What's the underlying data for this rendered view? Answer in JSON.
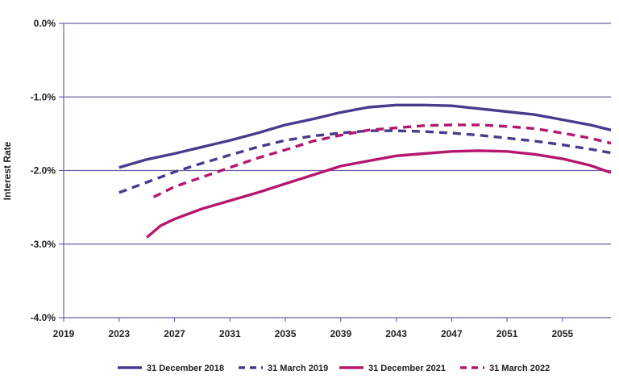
{
  "chart_data": {
    "type": "line",
    "title": "",
    "xlabel": "",
    "ylabel": "Interest Rate",
    "x_ticks": [
      "2019",
      "2023",
      "2027",
      "2031",
      "2035",
      "2039",
      "2043",
      "2047",
      "2051",
      "2055"
    ],
    "y_ticks": [
      "0.0%",
      "-1.0%",
      "-2.0%",
      "-3.0%",
      "-4.0%"
    ],
    "xlim": [
      2019,
      2058.5
    ],
    "ylim": [
      -4.0,
      0.0
    ],
    "grid": true,
    "legend_position": "bottom",
    "series": [
      {
        "name": "31 December 2018",
        "color": "#4b3a8c",
        "style": "solid",
        "x": [
          2023,
          2025,
          2027,
          2029,
          2031,
          2033,
          2035,
          2037,
          2039,
          2041,
          2043,
          2045,
          2047,
          2049,
          2051,
          2053,
          2055,
          2057,
          2058.5
        ],
        "y": [
          -1.96,
          -1.85,
          -1.77,
          -1.68,
          -1.59,
          -1.49,
          -1.38,
          -1.3,
          -1.21,
          -1.14,
          -1.11,
          -1.11,
          -1.12,
          -1.16,
          -1.2,
          -1.24,
          -1.31,
          -1.38,
          -1.45
        ]
      },
      {
        "name": "31 March 2019",
        "color": "#4b3a8c",
        "style": "dashed",
        "x": [
          2023,
          2025,
          2027,
          2029,
          2031,
          2033,
          2035,
          2037,
          2039,
          2041,
          2043,
          2045,
          2047,
          2049,
          2051,
          2053,
          2055,
          2057,
          2058.5
        ],
        "y": [
          -2.3,
          -2.16,
          -2.02,
          -1.9,
          -1.79,
          -1.68,
          -1.59,
          -1.53,
          -1.49,
          -1.46,
          -1.46,
          -1.47,
          -1.49,
          -1.52,
          -1.56,
          -1.6,
          -1.65,
          -1.71,
          -1.76
        ]
      },
      {
        "name": "31 December 2021",
        "color": "#b5166e",
        "style": "solid",
        "x": [
          2025,
          2026,
          2027,
          2029,
          2031,
          2033,
          2035,
          2037,
          2039,
          2041,
          2043,
          2045,
          2047,
          2049,
          2051,
          2053,
          2055,
          2057,
          2058.5
        ],
        "y": [
          -2.91,
          -2.75,
          -2.66,
          -2.52,
          -2.41,
          -2.3,
          -2.18,
          -2.06,
          -1.94,
          -1.87,
          -1.8,
          -1.77,
          -1.74,
          -1.73,
          -1.74,
          -1.78,
          -1.84,
          -1.93,
          -2.03
        ]
      },
      {
        "name": "31 March 2022",
        "color": "#b5166e",
        "style": "dashed",
        "x": [
          2025.5,
          2027,
          2029,
          2031,
          2033,
          2035,
          2037,
          2039,
          2041,
          2043,
          2045,
          2047,
          2049,
          2051,
          2053,
          2055,
          2057,
          2058.5
        ],
        "y": [
          -2.36,
          -2.22,
          -2.09,
          -1.96,
          -1.83,
          -1.72,
          -1.6,
          -1.52,
          -1.45,
          -1.42,
          -1.39,
          -1.38,
          -1.38,
          -1.4,
          -1.43,
          -1.49,
          -1.56,
          -1.63
        ]
      }
    ]
  }
}
